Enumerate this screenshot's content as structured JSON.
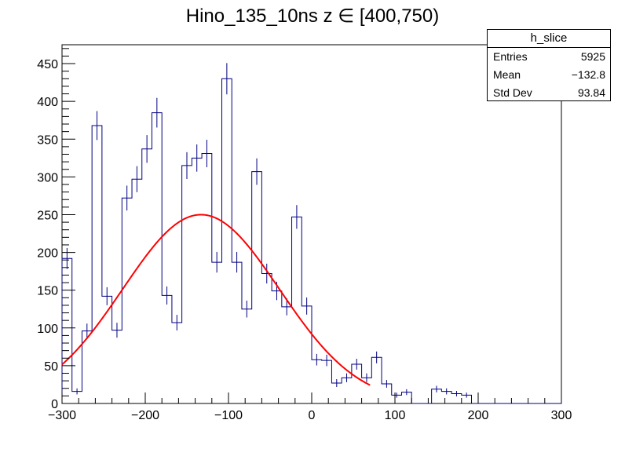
{
  "title": "Hino_135_10ns z  ∈ [400,750)",
  "stats_box": {
    "name": "h_slice",
    "rows": [
      {
        "label": "Entries",
        "value": "5925"
      },
      {
        "label": "Mean",
        "value": "−132.8"
      },
      {
        "label": "Std Dev",
        "value": "93.84"
      }
    ]
  },
  "chart_data": {
    "type": "histogram",
    "xlim": [
      -300,
      300
    ],
    "ylim": [
      0,
      475
    ],
    "x_ticks": [
      -300,
      -200,
      -100,
      0,
      100,
      200,
      300
    ],
    "x_tick_labels": [
      "−300",
      "−200",
      "−100",
      "0",
      "100",
      "200",
      "300"
    ],
    "y_ticks": [
      0,
      50,
      100,
      150,
      200,
      250,
      300,
      350,
      400,
      450
    ],
    "y_tick_labels": [
      "0",
      "50",
      "100",
      "150",
      "200",
      "250",
      "300",
      "350",
      "400",
      "450"
    ],
    "bin_edges_start": -300,
    "bin_width": 12,
    "counts": [
      192,
      16,
      96,
      368,
      142,
      97,
      272,
      297,
      337,
      385,
      143,
      107,
      315,
      325,
      331,
      187,
      430,
      187,
      125,
      307,
      172,
      149,
      128,
      247,
      129,
      58,
      57,
      27,
      34,
      52,
      34,
      61,
      26,
      11,
      15,
      0,
      0,
      19,
      16,
      13,
      11,
      0,
      0,
      0,
      0,
      0,
      0,
      0,
      0,
      0
    ],
    "histogram_color": "#000080",
    "fit": {
      "type": "gaussian",
      "amplitude": 250,
      "mean": -133,
      "sigma": 94,
      "x_range": [
        -300,
        70
      ],
      "color": "#ff0000"
    }
  }
}
